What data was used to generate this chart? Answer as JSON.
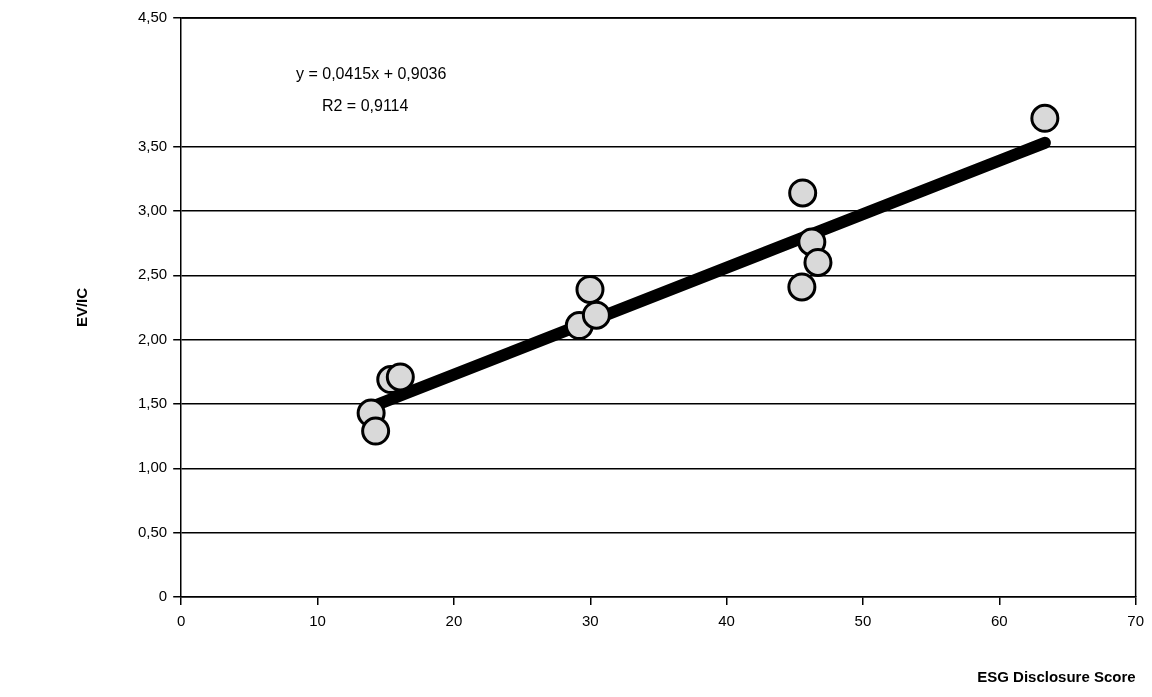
{
  "chart_data": {
    "type": "scatter",
    "xlabel": "ESG Disclosure Score",
    "ylabel": "EV/IC",
    "annotations": [
      "y = 0,0415x + 0,9036",
      "R2 = 0,9114"
    ],
    "xlim": [
      0,
      70
    ],
    "xticks": [
      0,
      10,
      20,
      30,
      40,
      50,
      60,
      70
    ],
    "ylim": [
      0,
      4.5
    ],
    "yticks": [
      0,
      {
        "value": 0.5,
        "label": "0,50"
      },
      {
        "value": 1,
        "label": "1,00"
      },
      {
        "value": 1.5,
        "label": "1,50"
      },
      {
        "value": 2,
        "label": "2,00"
      },
      {
        "value": 2.5,
        "label": "2,50"
      },
      {
        "value": 3,
        "label": "3,00"
      },
      {
        "value": 3.5,
        "label": "3,50"
      },
      {
        "value": 4.5,
        "label": "4,50"
      }
    ],
    "grid": "y",
    "legend": false,
    "marker": "circle",
    "series": [
      {
        "type": "line",
        "marker": "none",
        "color": "#000000",
        "x": [
          14.26,
          63.34
        ],
        "values": [
          1.49,
          3.53
        ]
      },
      {
        "color": "#d9d9d9",
        "x": [
          13.93,
          14.26,
          15.37,
          16.07,
          29.2,
          29.98,
          30.45,
          45.58,
          46.25,
          46.7,
          45.52,
          63.34
        ],
        "values": [
          1.43,
          1.29,
          1.69,
          1.71,
          2.11,
          2.39,
          2.19,
          3.14,
          2.76,
          2.6,
          2.41,
          3.72
        ]
      }
    ]
  }
}
